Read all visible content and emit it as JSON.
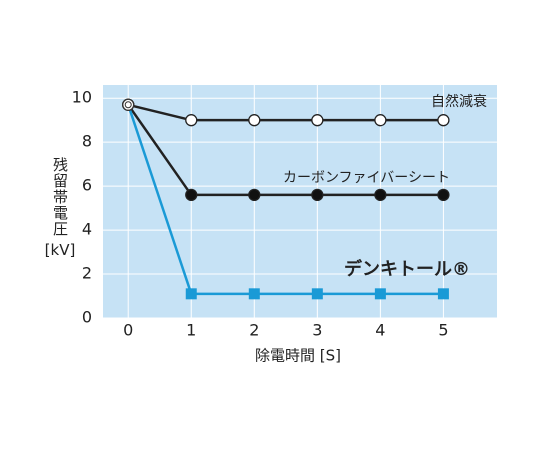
{
  "chart_data": {
    "type": "line",
    "y_label": "残留帯電圧",
    "y_unit": "[kV]",
    "x_label": "除電時間 [S]",
    "x": [
      0,
      1,
      2,
      3,
      4,
      5
    ],
    "xlim": [
      -0.4,
      5.85
    ],
    "xticks": [
      0,
      1,
      2,
      3,
      4,
      5
    ],
    "ylim": [
      0,
      10.6
    ],
    "yticks": [
      0,
      2,
      4,
      6,
      8,
      10
    ],
    "grid": true,
    "background": "#c6e2f5",
    "series": [
      {
        "name": "自然減衰",
        "color": "#222222",
        "marker_fill": "#ffffff",
        "values": [
          9.7,
          9.0,
          9.0,
          9.0,
          9.0,
          9.0
        ]
      },
      {
        "name": "カーボンファイバーシート",
        "color": "#222222",
        "marker_fill": "#111111",
        "values": [
          9.7,
          5.6,
          5.6,
          5.6,
          5.6,
          5.6
        ]
      },
      {
        "name": "デンキトール®",
        "color": "#1a9ad6",
        "marker_fill": "#1a9ad6",
        "values": [
          9.7,
          1.1,
          1.1,
          1.1,
          1.1,
          1.1
        ]
      }
    ]
  }
}
